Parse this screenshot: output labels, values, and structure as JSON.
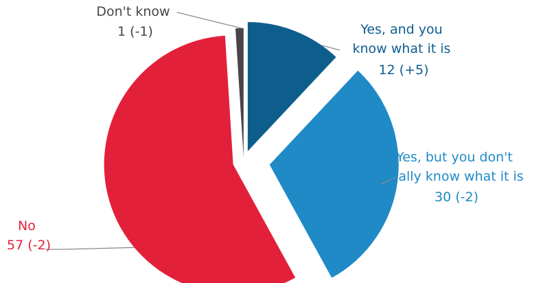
{
  "chart_data": {
    "type": "pie",
    "slices": [
      {
        "label_lines": [
          "Yes, and you",
          "know what it is"
        ],
        "value_text": "12 (+5)",
        "value": 12,
        "change": 5,
        "color": "#0e5e8d"
      },
      {
        "label_lines": [
          "Yes, but you don't",
          "really know what it is"
        ],
        "value_text": "30 (-2)",
        "value": 30,
        "change": -2,
        "color": "#1f8ac6"
      },
      {
        "label_lines": [
          "No"
        ],
        "value_text": "57 (-2)",
        "value": 57,
        "change": -2,
        "color": "#e3203a"
      },
      {
        "label_lines": [
          "Don't know"
        ],
        "value_text": "1 (-1)",
        "value": 1,
        "change": -1,
        "color": "#4a4446"
      }
    ],
    "leader_color": "#8c8c8c"
  }
}
